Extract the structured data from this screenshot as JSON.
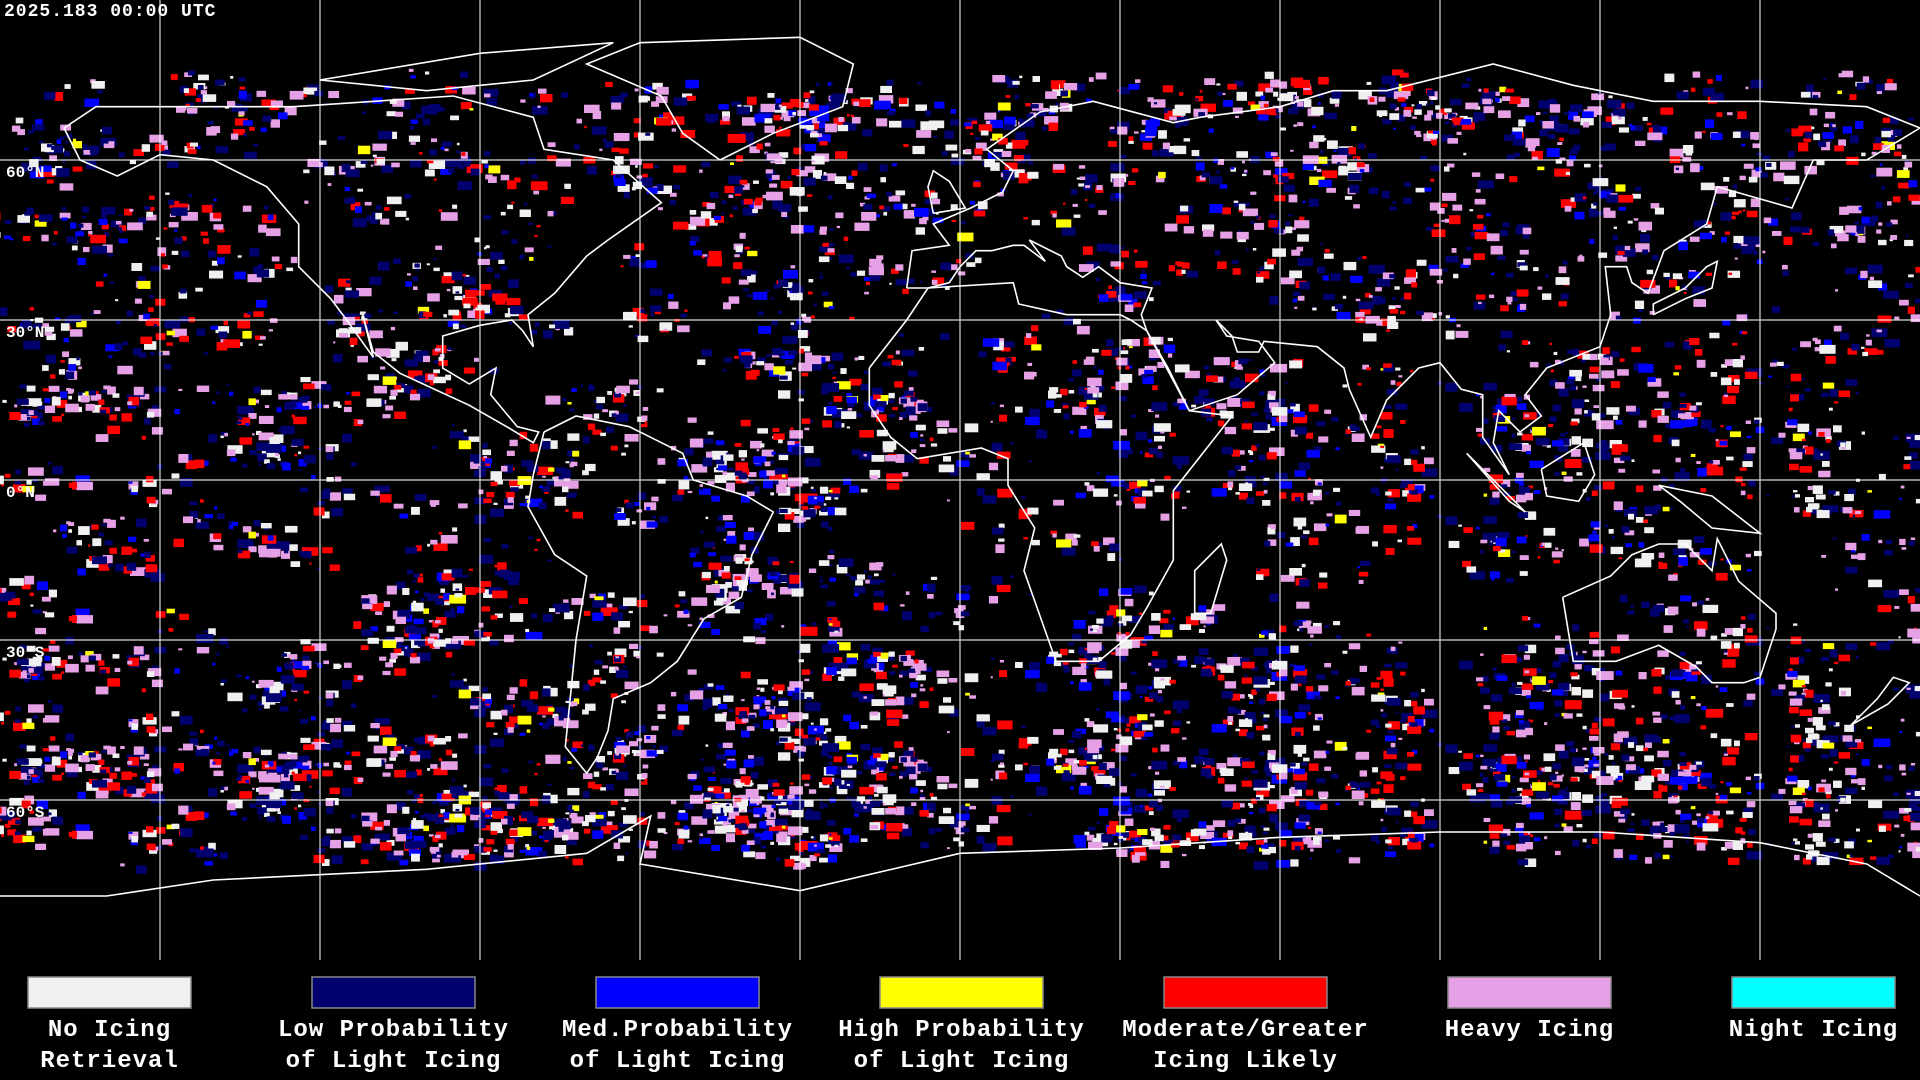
{
  "header": {
    "timestamp": "2025.183 00:00 UTC"
  },
  "map": {
    "latitude_labels": [
      "60°N",
      "30°N",
      "0°N",
      "30°S",
      "60°S"
    ]
  },
  "legend": [
    {
      "label": [
        "No Icing",
        "Retrieval"
      ],
      "color": "#f0f0f0"
    },
    {
      "label": [
        "Low Probability",
        "of Light Icing"
      ],
      "color": "#00006e"
    },
    {
      "label": [
        "Med.Probability",
        "of Light Icing"
      ],
      "color": "#0000ff"
    },
    {
      "label": [
        "High Probability",
        "of Light Icing"
      ],
      "color": "#ffff00"
    },
    {
      "label": [
        "Moderate/Greater",
        "Icing Likely"
      ],
      "color": "#ff0000"
    },
    {
      "label": [
        "Heavy Icing"
      ],
      "color": "#e6a0e6"
    },
    {
      "label": [
        "Night Icing"
      ],
      "color": "#00ffff"
    }
  ]
}
